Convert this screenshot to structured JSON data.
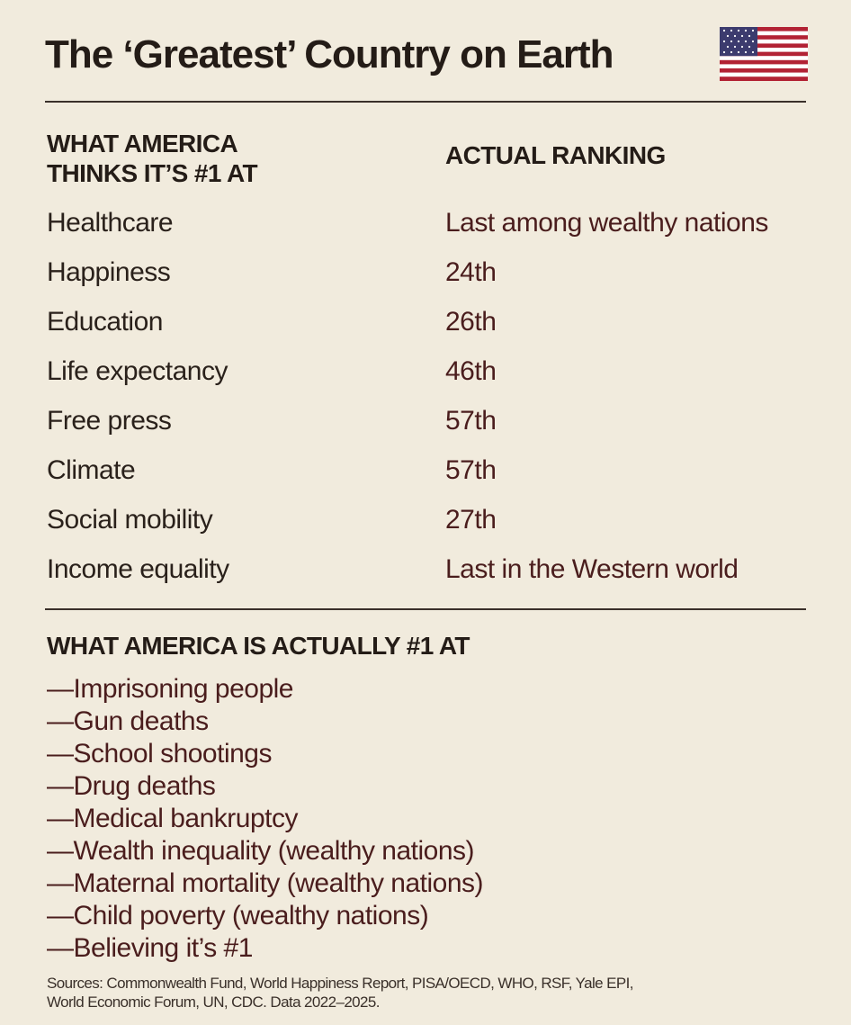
{
  "title": "The ‘Greatest’ Country on Earth",
  "flag_icon": "us-flag-icon",
  "colors": {
    "background": "#f1ebdd",
    "ranking_text": "#4a1d1d",
    "flag_red": "#b22234",
    "flag_blue": "#3c3b6e"
  },
  "table": {
    "left_header_line1": "WHAT AMERICA",
    "left_header_line2": "THINKS IT’S #1 AT",
    "right_header": "ACTUAL RANKING",
    "rows": [
      {
        "label": "Healthcare",
        "rank": "Last among wealthy nations"
      },
      {
        "label": "Happiness",
        "rank": "24th"
      },
      {
        "label": "Education",
        "rank": "26th"
      },
      {
        "label": "Life expectancy",
        "rank": "46th"
      },
      {
        "label": "Free press",
        "rank": "57th"
      },
      {
        "label": "Climate",
        "rank": "57th"
      },
      {
        "label": "Social mobility",
        "rank": "27th"
      },
      {
        "label": "Income equality",
        "rank": "Last in the Western world"
      }
    ]
  },
  "actual": {
    "heading": "WHAT AMERICA IS ACTUALLY #1 AT",
    "items": [
      "—Imprisoning people",
      "—Gun deaths",
      "—School shootings",
      "—Drug deaths",
      "—Medical bankruptcy",
      "—Wealth inequality (wealthy nations)",
      "—Maternal mortality (wealthy nations)",
      "—Child poverty (wealthy nations)",
      "—Believing it’s #1"
    ]
  },
  "sources": {
    "line1": "Sources: Commonwealth Fund, World Happiness Report, PISA/OECD, WHO, RSF, Yale EPI,",
    "line2": "World Economic Forum, UN, CDC. Data 2022–2025."
  }
}
